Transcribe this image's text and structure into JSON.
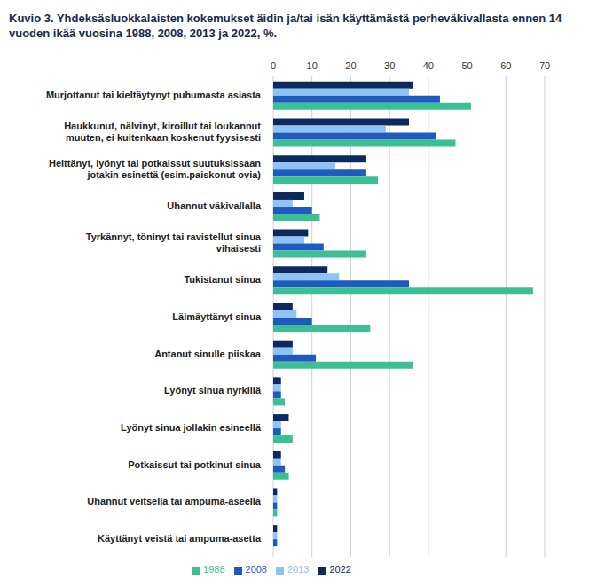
{
  "chart_data": {
    "type": "bar",
    "orientation": "horizontal",
    "title": "Kuvio 3. Yhdeksäsluokkalaisten kokemukset äidin ja/tai isän käyttämästä perheväkivallasta ennen 14 vuoden ikää vuosina 1988, 2008, 2013 ja 2022, %.",
    "categories": [
      "Murjottanut tai kieltäytynyt puhumasta asiasta",
      "Haukkunut, nälvinyt, kiroillut tai loukannut muuten, ei kuitenkaan koskenut fyysisesti",
      "Heittänyt, lyönyt tai potkaissut suutuksissaan jotakin esinettä (esim.paiskonut ovia)",
      "Uhannut väkivallalla",
      "Tyrkännyt, töninyt tai ravistellut sinua vihaisesti",
      "Tukistanut sinua",
      "Läimäyttänyt sinua",
      "Antanut sinulle piiskaa",
      "Lyönyt sinua nyrkillä",
      "Lyönyt sinua jollakin esineellä",
      "Potkaissut tai potkinut sinua",
      "Uhannut veitsellä tai ampuma-aseella",
      "Käyttänyt veistä tai ampuma-asetta"
    ],
    "series": [
      {
        "name": "2022",
        "color": "#0d2a5c",
        "values": [
          36,
          35,
          24,
          8,
          9,
          14,
          5,
          5,
          2,
          4,
          2,
          1,
          1
        ]
      },
      {
        "name": "2013",
        "color": "#8fc3f5",
        "values": [
          35,
          29,
          16,
          5,
          8,
          17,
          6,
          5,
          2,
          2,
          2,
          1,
          1
        ]
      },
      {
        "name": "2008",
        "color": "#1f5bbf",
        "values": [
          43,
          42,
          24,
          10,
          13,
          35,
          10,
          11,
          2,
          2,
          3,
          1,
          1
        ]
      },
      {
        "name": "1988",
        "color": "#3dbf96",
        "values": [
          51,
          47,
          27,
          12,
          24,
          67,
          25,
          36,
          3,
          5,
          4,
          1,
          null
        ]
      }
    ],
    "xlim": [
      0,
      70
    ],
    "xticks": [
      0,
      10,
      20,
      30,
      40,
      50,
      60,
      70
    ],
    "grid": true,
    "legend": "bottom"
  }
}
